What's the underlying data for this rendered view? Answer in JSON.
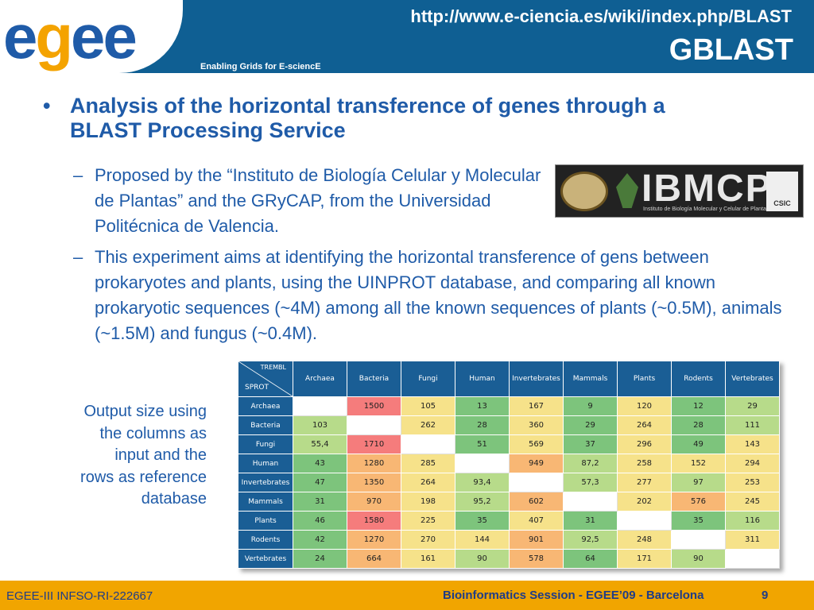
{
  "header": {
    "logo_text": "egee",
    "tagline": "Enabling Grids for E-sciencE",
    "url": "http://www.e-ciencia.es/wiki/index.php/BLAST",
    "title": "GBLAST"
  },
  "content": {
    "main_bullet": "Analysis of the horizontal transference of genes through a BLAST Processing Service",
    "sub1": "Proposed by the “Instituto de Biología Celular y Molecular de Plantas” and the GRyCAP, from the Universidad Politécnica de Valencia.",
    "sub2": "This experiment aims at identifying the horizontal transference of gens between prokaryotes and plants, using the UINPROT database, and comparing all known prokaryotic sequences (~4M) among  all the known sequences of plants (~0.5M), animals (~1.5M) and fungus (~0.4M).",
    "bullet_char": "•",
    "dash_char": "–"
  },
  "ibmcp_logo": {
    "name": "IBMCP",
    "subtitle": "Instituto de Biología Molecular y Celular de Plantas",
    "csic": "CSIC"
  },
  "side_note": "Output size using the columns as input and the rows as reference database",
  "table": {
    "corner_top": "TREMBL",
    "corner_bottom": "SPROT",
    "columns": [
      "Archaea",
      "Bacteria",
      "Fungi",
      "Human",
      "Invertebrates",
      "Mammals",
      "Plants",
      "Rodents",
      "Vertebrates"
    ],
    "rows": [
      {
        "label": "Archaea",
        "cells": [
          {
            "v": "",
            "c": "empty"
          },
          {
            "v": "1500",
            "c": "red"
          },
          {
            "v": "105",
            "c": "yellow"
          },
          {
            "v": "13",
            "c": "green"
          },
          {
            "v": "167",
            "c": "yellow"
          },
          {
            "v": "9",
            "c": "green"
          },
          {
            "v": "120",
            "c": "yellow"
          },
          {
            "v": "12",
            "c": "green"
          },
          {
            "v": "29",
            "c": "lgreen"
          }
        ]
      },
      {
        "label": "Bacteria",
        "cells": [
          {
            "v": "103",
            "c": "lgreen"
          },
          {
            "v": "",
            "c": "empty"
          },
          {
            "v": "262",
            "c": "yellow"
          },
          {
            "v": "28",
            "c": "green"
          },
          {
            "v": "360",
            "c": "yellow"
          },
          {
            "v": "29",
            "c": "green"
          },
          {
            "v": "264",
            "c": "yellow"
          },
          {
            "v": "28",
            "c": "green"
          },
          {
            "v": "111",
            "c": "lgreen"
          }
        ]
      },
      {
        "label": "Fungi",
        "cells": [
          {
            "v": "55,4",
            "c": "lgreen"
          },
          {
            "v": "1710",
            "c": "red"
          },
          {
            "v": "",
            "c": "empty"
          },
          {
            "v": "51",
            "c": "green"
          },
          {
            "v": "569",
            "c": "yellow"
          },
          {
            "v": "37",
            "c": "green"
          },
          {
            "v": "296",
            "c": "yellow"
          },
          {
            "v": "49",
            "c": "green"
          },
          {
            "v": "143",
            "c": "yellow"
          }
        ]
      },
      {
        "label": "Human",
        "cells": [
          {
            "v": "43",
            "c": "green"
          },
          {
            "v": "1280",
            "c": "orange"
          },
          {
            "v": "285",
            "c": "yellow"
          },
          {
            "v": "",
            "c": "empty"
          },
          {
            "v": "949",
            "c": "orange"
          },
          {
            "v": "87,2",
            "c": "lgreen"
          },
          {
            "v": "258",
            "c": "yellow"
          },
          {
            "v": "152",
            "c": "yellow"
          },
          {
            "v": "294",
            "c": "yellow"
          }
        ]
      },
      {
        "label": "Invertebrates",
        "cells": [
          {
            "v": "47",
            "c": "green"
          },
          {
            "v": "1350",
            "c": "orange"
          },
          {
            "v": "264",
            "c": "yellow"
          },
          {
            "v": "93,4",
            "c": "lgreen"
          },
          {
            "v": "",
            "c": "empty"
          },
          {
            "v": "57,3",
            "c": "lgreen"
          },
          {
            "v": "277",
            "c": "yellow"
          },
          {
            "v": "97",
            "c": "lgreen"
          },
          {
            "v": "253",
            "c": "yellow"
          }
        ]
      },
      {
        "label": "Mammals",
        "cells": [
          {
            "v": "31",
            "c": "green"
          },
          {
            "v": "970",
            "c": "orange"
          },
          {
            "v": "198",
            "c": "yellow"
          },
          {
            "v": "95,2",
            "c": "lgreen"
          },
          {
            "v": "602",
            "c": "orange"
          },
          {
            "v": "",
            "c": "empty"
          },
          {
            "v": "202",
            "c": "yellow"
          },
          {
            "v": "576",
            "c": "orange"
          },
          {
            "v": "245",
            "c": "yellow"
          }
        ]
      },
      {
        "label": "Plants",
        "cells": [
          {
            "v": "46",
            "c": "green"
          },
          {
            "v": "1580",
            "c": "red"
          },
          {
            "v": "225",
            "c": "yellow"
          },
          {
            "v": "35",
            "c": "green"
          },
          {
            "v": "407",
            "c": "yellow"
          },
          {
            "v": "31",
            "c": "green"
          },
          {
            "v": "",
            "c": "empty"
          },
          {
            "v": "35",
            "c": "green"
          },
          {
            "v": "116",
            "c": "lgreen"
          }
        ]
      },
      {
        "label": "Rodents",
        "cells": [
          {
            "v": "42",
            "c": "green"
          },
          {
            "v": "1270",
            "c": "orange"
          },
          {
            "v": "270",
            "c": "yellow"
          },
          {
            "v": "144",
            "c": "yellow"
          },
          {
            "v": "901",
            "c": "orange"
          },
          {
            "v": "92,5",
            "c": "lgreen"
          },
          {
            "v": "248",
            "c": "yellow"
          },
          {
            "v": "",
            "c": "empty"
          },
          {
            "v": "311",
            "c": "yellow"
          }
        ]
      },
      {
        "label": "Vertebrates",
        "cells": [
          {
            "v": "24",
            "c": "green"
          },
          {
            "v": "664",
            "c": "orange"
          },
          {
            "v": "161",
            "c": "yellow"
          },
          {
            "v": "90",
            "c": "lgreen"
          },
          {
            "v": "578",
            "c": "orange"
          },
          {
            "v": "64",
            "c": "green"
          },
          {
            "v": "171",
            "c": "yellow"
          },
          {
            "v": "90",
            "c": "lgreen"
          },
          {
            "v": "",
            "c": "empty"
          }
        ]
      }
    ]
  },
  "footer": {
    "left": "EGEE-III INFSO-RI-222667",
    "center": "Bioinformatics Session - EGEE’09 - Barcelona",
    "page": "9"
  },
  "colors": {
    "header_blue": "#0f5f93",
    "text_blue": "#1f5ba8",
    "footer_orange": "#f1a500",
    "cell_green": "#7dc47c",
    "cell_light_green": "#b7db8a",
    "cell_yellow": "#f6e28a",
    "cell_orange": "#f8b774",
    "cell_red": "#f57c7c"
  }
}
